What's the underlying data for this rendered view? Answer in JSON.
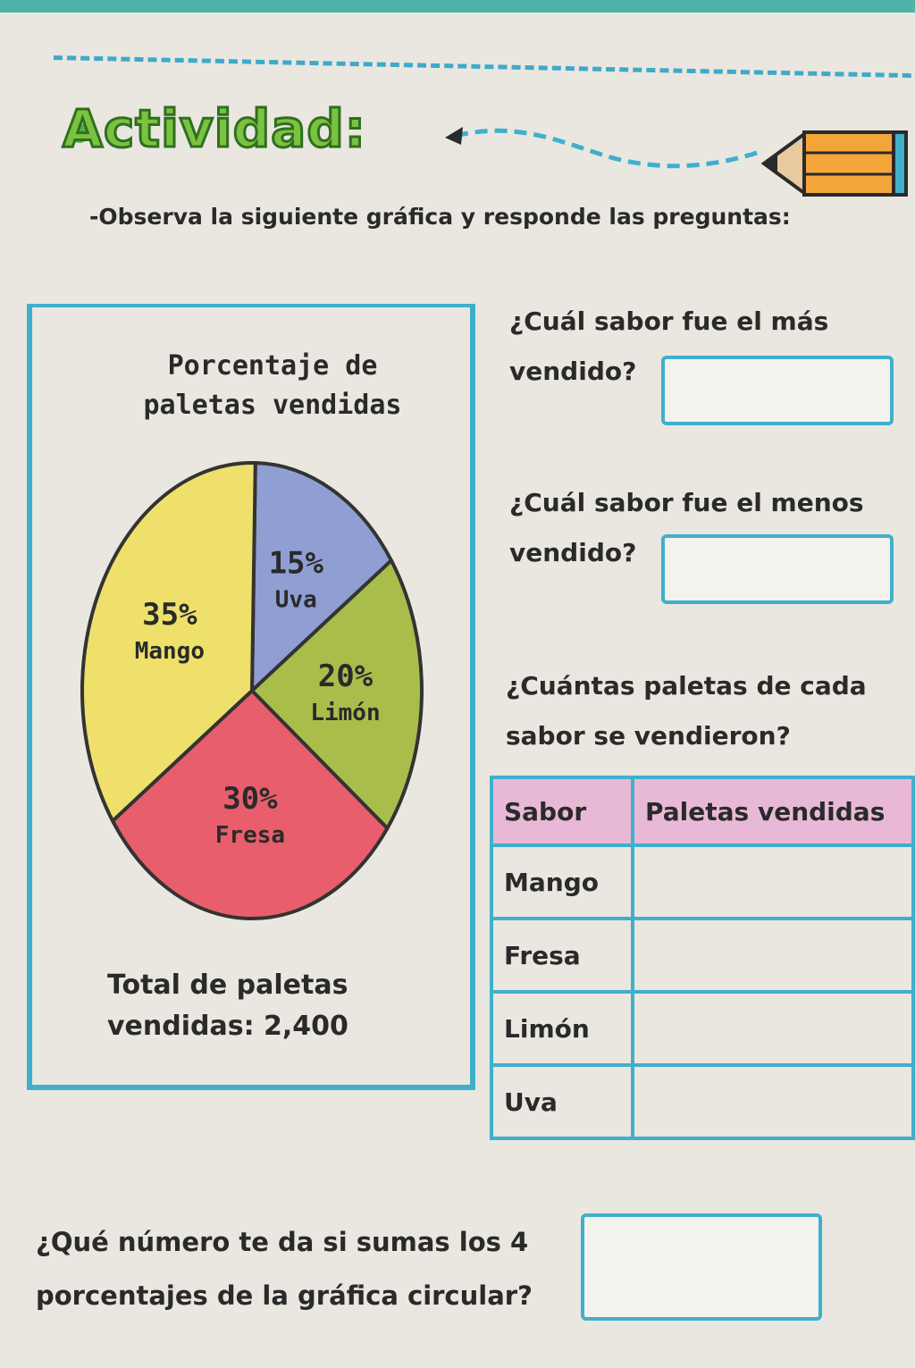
{
  "header": {
    "title": "Actividad:",
    "instruction": "-Observa la siguiente gráfica y responde las preguntas:"
  },
  "chart_data": {
    "type": "pie",
    "title": "Porcentaje de paletas vendidas",
    "slices": [
      {
        "name": "Uva",
        "value": 15,
        "label": "15%",
        "color": "#8f9fd3"
      },
      {
        "name": "Limón",
        "value": 20,
        "label": "20%",
        "color": "#a9bd4b"
      },
      {
        "name": "Fresa",
        "value": 30,
        "label": "30%",
        "color": "#e85e6c"
      },
      {
        "name": "Mango",
        "value": 35,
        "label": "35%",
        "color": "#eee06a"
      }
    ],
    "total_text": "Total de paletas vendidas: 2,400"
  },
  "questions": {
    "q1_line1": "¿Cuál sabor fue el más",
    "q1_line2": "vendido?",
    "q2_line1": "¿Cuál sabor fue el menos",
    "q2_line2": "vendido?",
    "q3_line1": "¿Cuántas paletas de cada",
    "q3_line2": "sabor se vendieron?",
    "q4_line1": "¿Qué número te da si sumas los 4",
    "q4_line2": "porcentajes de la gráfica circular?"
  },
  "table": {
    "headers": [
      "Sabor",
      "Paletas vendidas"
    ],
    "rows": [
      {
        "sabor": "Mango",
        "paletas": ""
      },
      {
        "sabor": "Fresa",
        "paletas": ""
      },
      {
        "sabor": "Limón",
        "paletas": ""
      },
      {
        "sabor": "Uva",
        "paletas": ""
      }
    ]
  },
  "total_lines": [
    "Total de paletas",
    "vendidas: 2,400"
  ],
  "chart_title_lines": [
    "Porcentaje de",
    "paletas vendidas"
  ]
}
